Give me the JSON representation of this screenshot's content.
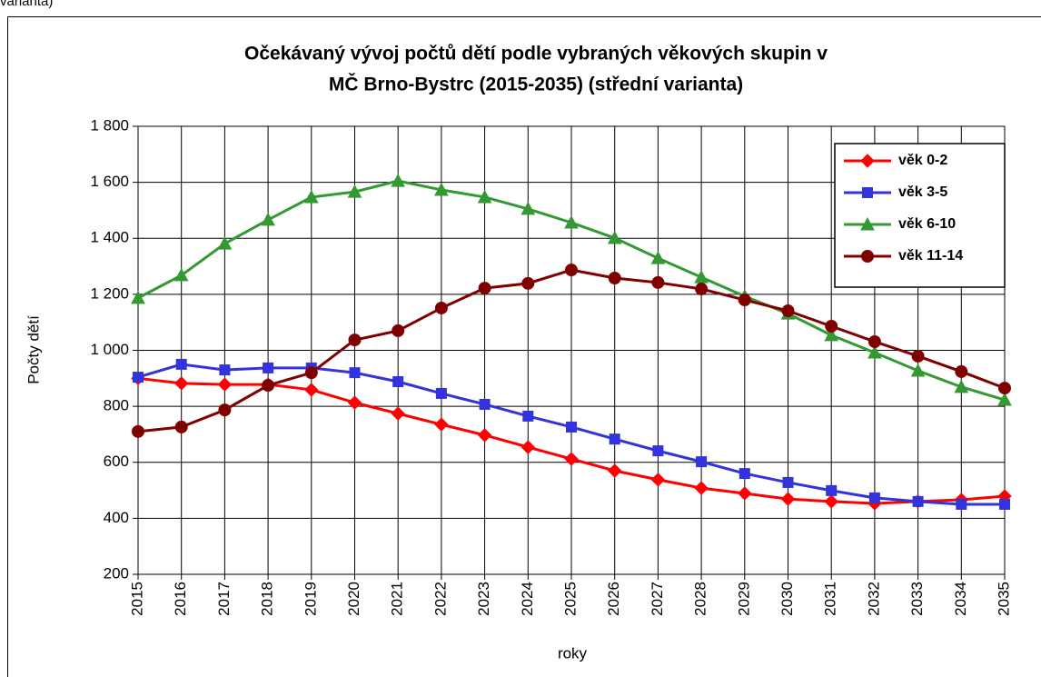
{
  "caption": "varianta)",
  "chart_data": {
    "type": "line",
    "title": [
      "Očekávaný vývoj počtů dětí podle vybraných věkových skupin v",
      "MČ Brno-Bystrc (2015-2035) (střední varianta)"
    ],
    "xlabel": "roky",
    "ylabel": "Počty dětí",
    "categories": [
      "2015",
      "2016",
      "2017",
      "2018",
      "2019",
      "2020",
      "2021",
      "2022",
      "2023",
      "2024",
      "2025",
      "2026",
      "2027",
      "2028",
      "2029",
      "2030",
      "2031",
      "2032",
      "2033",
      "2034",
      "2035"
    ],
    "series": [
      {
        "name": "věk 0-2",
        "color": "#ff0000",
        "marker": "diamond",
        "values": [
          900,
          882,
          878,
          878,
          859,
          813,
          774,
          735,
          697,
          654,
          612,
          570,
          538,
          508,
          489,
          469,
          460,
          453,
          460,
          466,
          479
        ]
      },
      {
        "name": "věk 3-5",
        "color": "#3333dd",
        "marker": "square",
        "values": [
          904,
          950,
          930,
          937,
          937,
          920,
          888,
          846,
          807,
          765,
          726,
          683,
          641,
          602,
          560,
          528,
          499,
          473,
          460,
          450,
          450
        ]
      },
      {
        "name": "věk 6-10",
        "color": "#339933",
        "marker": "triangle",
        "values": [
          1187,
          1268,
          1381,
          1466,
          1547,
          1566,
          1605,
          1573,
          1547,
          1505,
          1456,
          1401,
          1329,
          1261,
          1193,
          1131,
          1054,
          992,
          927,
          869,
          823
        ]
      },
      {
        "name": "věk 11-14",
        "color": "#800000",
        "marker": "circle",
        "values": [
          710,
          726,
          787,
          875,
          920,
          1037,
          1070,
          1151,
          1222,
          1239,
          1287,
          1258,
          1242,
          1219,
          1180,
          1141,
          1086,
          1031,
          979,
          924,
          865
        ]
      }
    ],
    "ylim": [
      200,
      1800
    ],
    "yticks": [
      200,
      400,
      600,
      800,
      {
        "value": 1000,
        "label": "1 000"
      },
      {
        "value": 1200,
        "label": "1 200"
      },
      {
        "value": 1400,
        "label": "1 400"
      },
      {
        "value": 1600,
        "label": "1 600"
      },
      {
        "value": 1800,
        "label": "1 800"
      }
    ],
    "grid": true,
    "legend": "top-right"
  }
}
